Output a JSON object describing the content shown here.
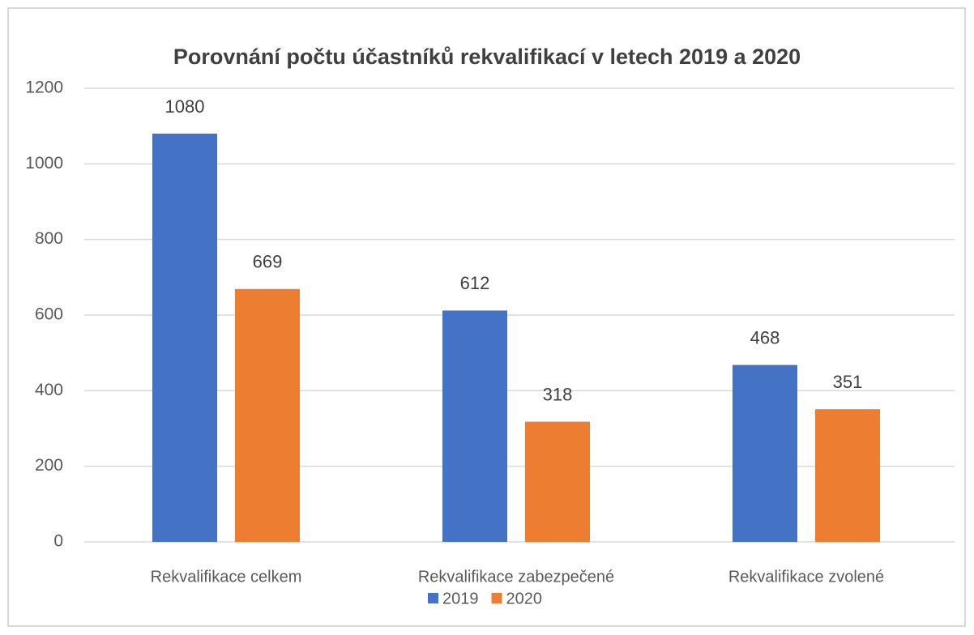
{
  "chart_data": {
    "type": "bar",
    "title": "Porovnání počtu účastníků rekvalifikací v letech 2019 a 2020",
    "categories": [
      "Rekvalifikace celkem",
      "Rekvalifikace zabezpečené",
      "Rekvalifikace zvolené"
    ],
    "series": [
      {
        "name": "2019",
        "color": "#4472c4",
        "values": [
          1080,
          612,
          468
        ]
      },
      {
        "name": "2020",
        "color": "#ed7d31",
        "values": [
          669,
          318,
          351
        ]
      }
    ],
    "ylim": [
      0,
      1200
    ],
    "yticks": [
      0,
      200,
      400,
      600,
      800,
      1000,
      1200
    ],
    "grid": true,
    "legend": "bottom"
  }
}
